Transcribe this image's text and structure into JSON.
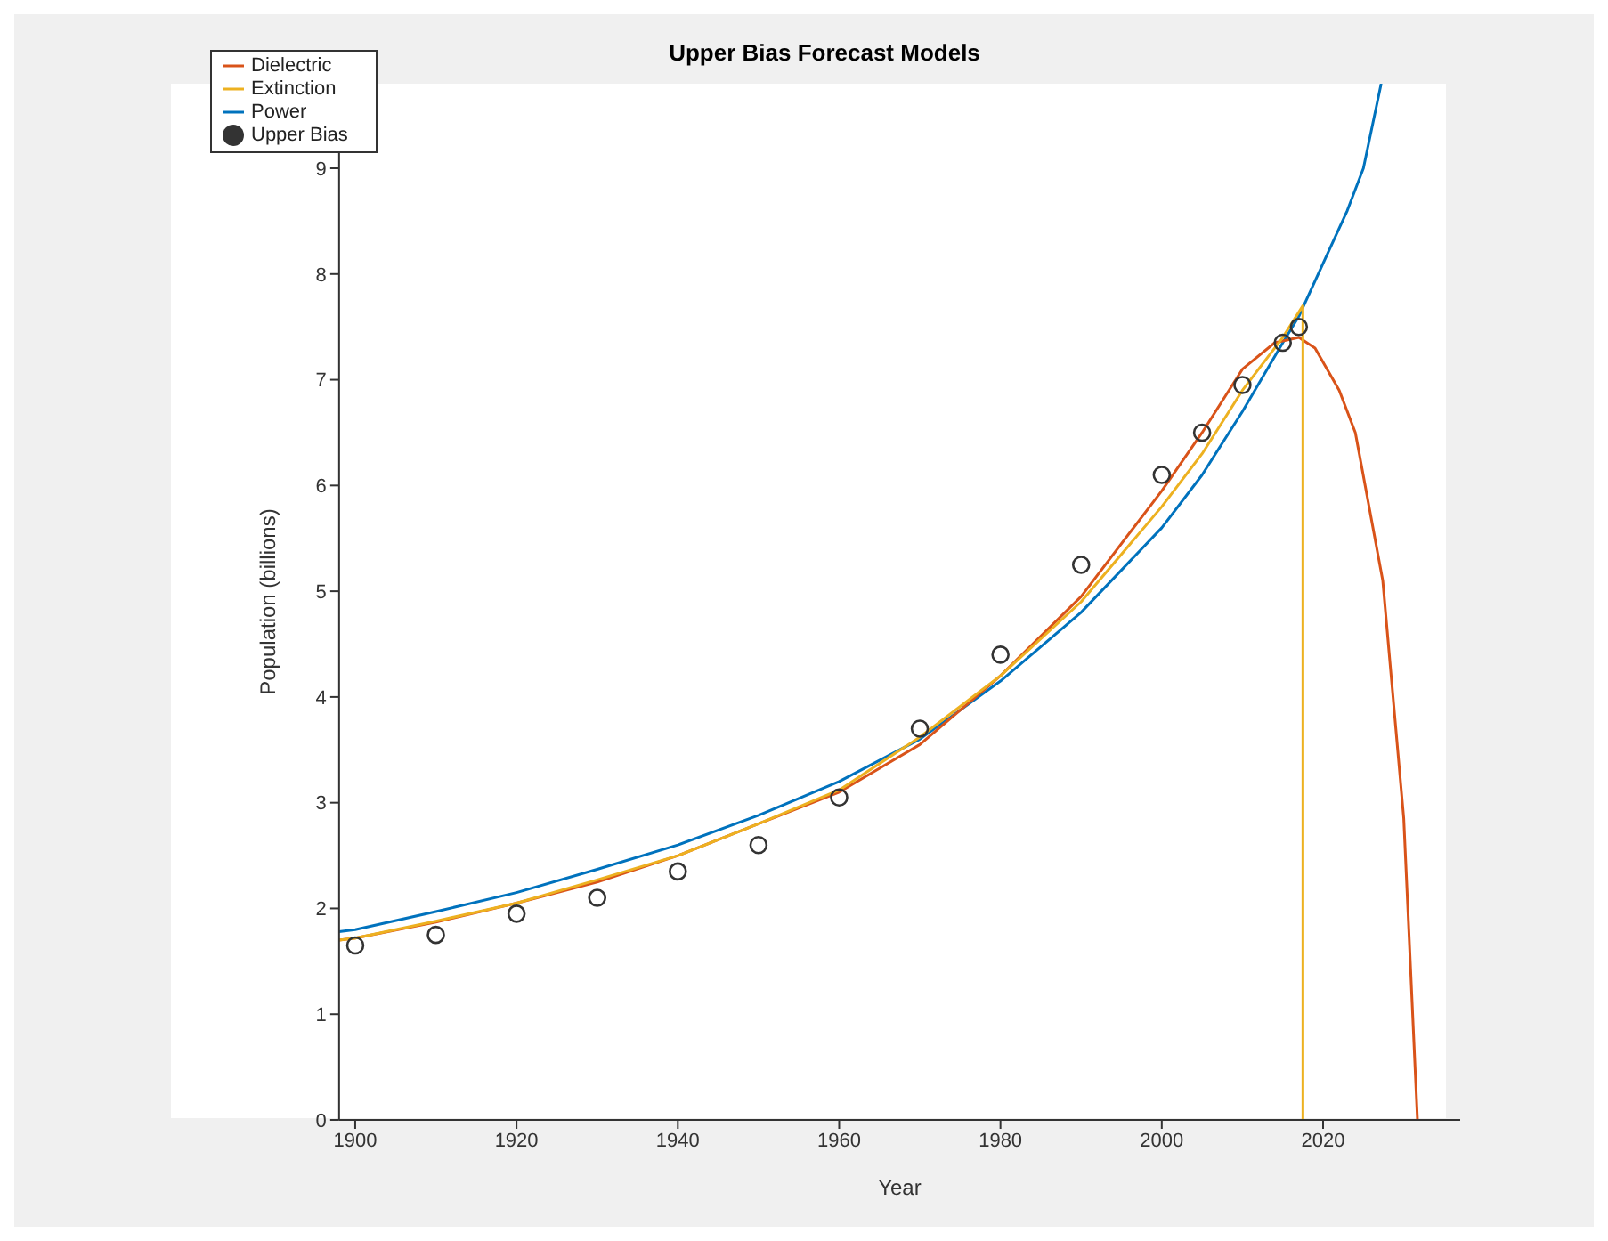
{
  "chart_data": {
    "type": "line",
    "title": "Upper Bias Forecast Models",
    "xlabel": "Year",
    "ylabel": "Population (billions)",
    "xlim": [
      1898,
      2037
    ],
    "xticks": [
      1900,
      1920,
      1940,
      1960,
      1980,
      2000,
      2020
    ],
    "ylim": [
      0,
      9.8
    ],
    "yticks": [
      0,
      1,
      2,
      3,
      4,
      5,
      6,
      7,
      8,
      9
    ],
    "grid": false,
    "legend": "top left",
    "line_style": "solid",
    "series": [
      {
        "name": "Upper Bias",
        "type": "scatter",
        "marker": "circle",
        "color": "#333333",
        "x": [
          1900,
          1910,
          1920,
          1930,
          1940,
          1950,
          1960,
          1970,
          1980,
          1990,
          2000,
          2005,
          2010,
          2015,
          2017
        ],
        "values": [
          1.65,
          1.75,
          1.95,
          2.1,
          2.35,
          2.6,
          3.05,
          3.7,
          4.4,
          5.25,
          6.1,
          6.5,
          6.95,
          7.35,
          7.5
        ]
      },
      {
        "name": "Power",
        "type": "line",
        "color": "#0072bd",
        "x": [
          1898,
          1900,
          1910,
          1920,
          1930,
          1940,
          1950,
          1960,
          1970,
          1980,
          1990,
          2000,
          2005,
          2010,
          2015,
          2017,
          2020,
          2023,
          2025,
          2027.2
        ],
        "values": [
          1.78,
          1.8,
          1.97,
          2.15,
          2.37,
          2.6,
          2.88,
          3.2,
          3.6,
          4.15,
          4.8,
          5.6,
          6.1,
          6.7,
          7.35,
          7.6,
          8.1,
          8.6,
          9.0,
          9.8
        ]
      },
      {
        "name": "Dielectric",
        "type": "line",
        "color": "#d95319",
        "x": [
          1898,
          1900,
          1910,
          1920,
          1930,
          1940,
          1950,
          1960,
          1970,
          1980,
          1990,
          2000,
          2005,
          2010,
          2014,
          2017,
          2019,
          2022,
          2024,
          2027.4,
          2030,
          2031.7
        ],
        "values": [
          1.7,
          1.72,
          1.87,
          2.05,
          2.25,
          2.5,
          2.8,
          3.1,
          3.55,
          4.2,
          4.95,
          5.95,
          6.5,
          7.1,
          7.35,
          7.4,
          7.3,
          6.9,
          6.5,
          5.1,
          2.85,
          0
        ]
      },
      {
        "name": "Extinction",
        "type": "line",
        "color": "#edb120",
        "x": [
          1898,
          1900,
          1910,
          1920,
          1930,
          1940,
          1950,
          1960,
          1970,
          1980,
          1990,
          2000,
          2005,
          2010,
          2015,
          2017.5,
          2017.5
        ],
        "values": [
          1.7,
          1.72,
          1.88,
          2.05,
          2.27,
          2.5,
          2.8,
          3.12,
          3.62,
          4.2,
          4.9,
          5.8,
          6.3,
          6.9,
          7.4,
          7.7,
          0
        ]
      }
    ]
  }
}
